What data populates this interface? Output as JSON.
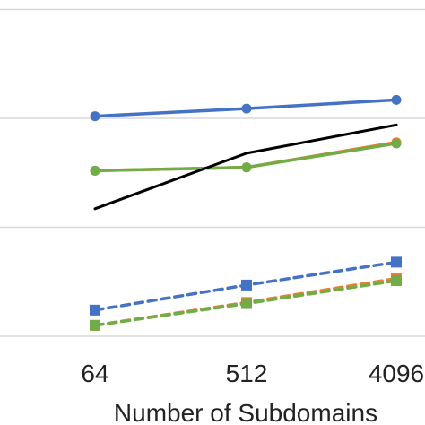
{
  "chart_data": {
    "type": "line",
    "x": [
      "64",
      "512",
      "4096"
    ],
    "xlabel": "Number of Subdomains",
    "ylabel": "",
    "title": "",
    "ylim": [
      0,
      3.2
    ],
    "grid_lines_y": [
      0,
      1,
      2,
      3
    ],
    "grid": true,
    "legend": "none",
    "series": [
      {
        "color": "#4472C4",
        "style": "solid",
        "marker": "circle",
        "values": [
          2.02,
          2.09,
          2.17
        ]
      },
      {
        "color": "#ED7D31",
        "style": "solid",
        "marker": "circle",
        "values": [
          1.52,
          1.55,
          1.78
        ]
      },
      {
        "color": "#70AD47",
        "style": "solid",
        "marker": "circle",
        "values": [
          1.52,
          1.55,
          1.77
        ]
      },
      {
        "color": "#000000",
        "style": "solid",
        "marker": "none",
        "values": [
          1.17,
          1.68,
          1.94
        ]
      },
      {
        "color": "#4472C4",
        "style": "dashed",
        "marker": "square",
        "values": [
          0.24,
          0.47,
          0.68
        ]
      },
      {
        "color": "#ED7D31",
        "style": "dashed",
        "marker": "square",
        "values": [
          0.1,
          0.31,
          0.53
        ]
      },
      {
        "color": "#70AD47",
        "style": "dashed",
        "marker": "square",
        "values": [
          0.1,
          0.3,
          0.51
        ]
      }
    ]
  }
}
